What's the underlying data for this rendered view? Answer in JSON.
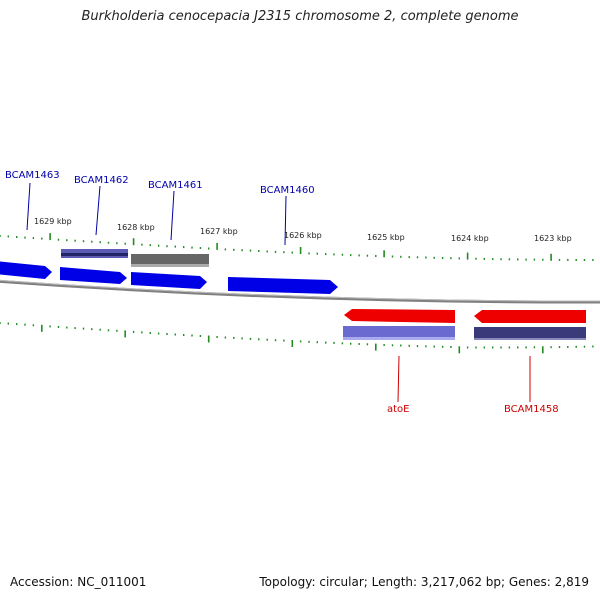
{
  "title": "Burkholderia cenocepacia J2315 chromosome 2, complete genome",
  "footer": {
    "accession": "Accession: NC_011001",
    "summary": "Topology: circular; Length: 3,217,062 bp; Genes: 2,819"
  },
  "scale": {
    "unit": "kbp",
    "kbp_ticks": [
      1629,
      1628,
      1627,
      1626,
      1625,
      1624,
      1623
    ],
    "tick_labels": [
      "1629 kbp",
      "1628 kbp",
      "1627 kbp",
      "1626 kbp",
      "1625 kbp",
      "1624 kbp",
      "1623 kbp"
    ]
  },
  "colors": {
    "forward_cds": "#0000ee",
    "reverse_cds": "#ee0000",
    "forward_label": "#0000aa",
    "reverse_label": "#cc0000",
    "backbone": "#888888",
    "tick": "#228b22",
    "feature_purple": "#5b5bb5",
    "feature_dark": "#333377",
    "feature_grey": "#666666"
  },
  "genes": [
    {
      "label": "BCAM1463",
      "strand": "forward"
    },
    {
      "label": "BCAM1462",
      "strand": "forward"
    },
    {
      "label": "BCAM1461",
      "strand": "forward"
    },
    {
      "label": "BCAM1460",
      "strand": "forward"
    },
    {
      "label": "atoE",
      "strand": "reverse"
    },
    {
      "label": "BCAM1458",
      "strand": "reverse"
    }
  ]
}
